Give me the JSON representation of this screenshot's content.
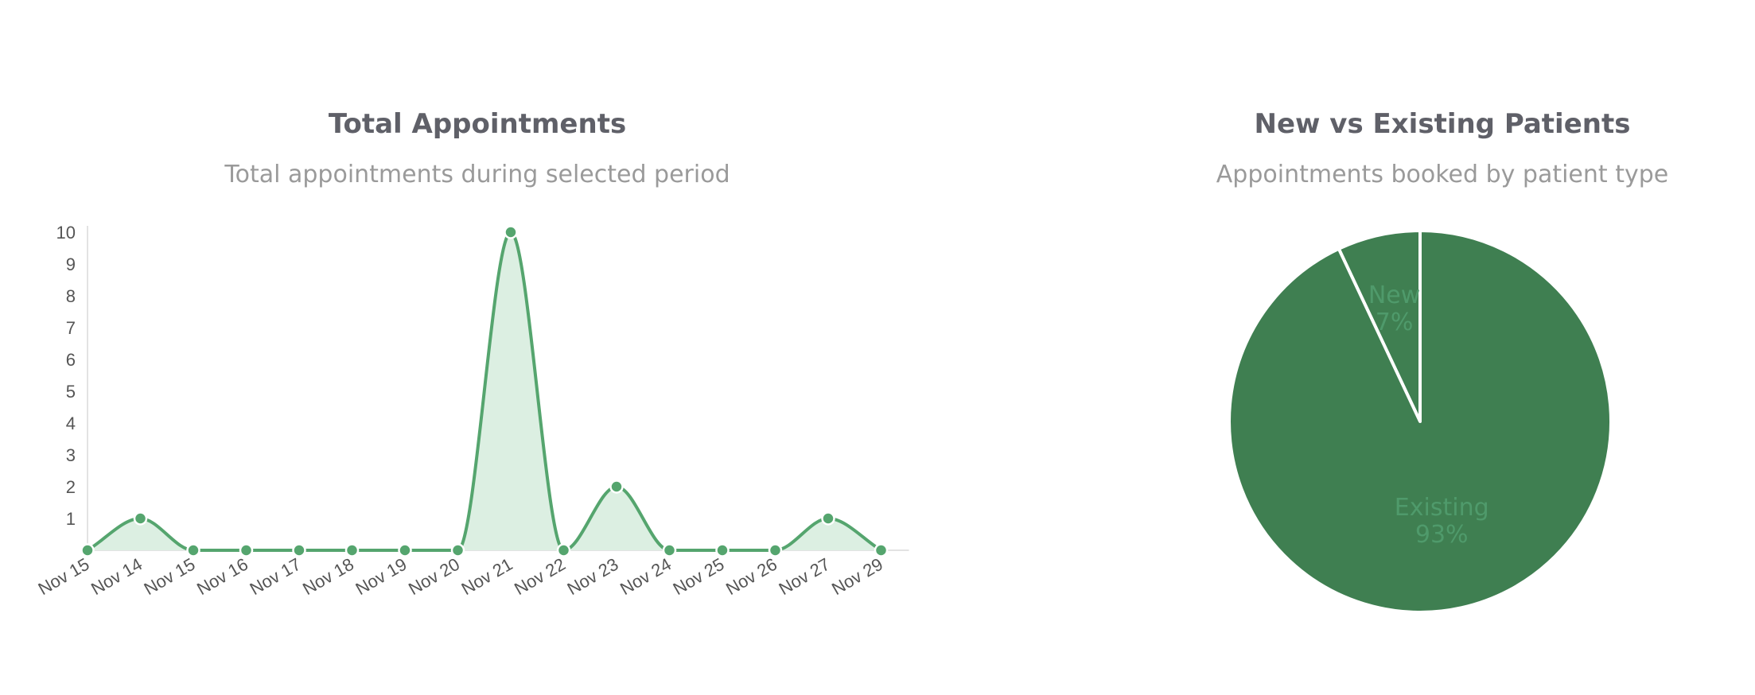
{
  "charts": {
    "appointments": {
      "title": "Total Appointments",
      "subtitle": "Total appointments during selected period"
    },
    "patients": {
      "title": "New vs Existing Patients",
      "subtitle": "Appointments booked by patient type"
    }
  },
  "chart_data": [
    {
      "type": "area",
      "title": "Total Appointments",
      "subtitle": "Total appointments during selected period",
      "categories": [
        "Nov 15",
        "Nov 14",
        "Nov 15",
        "Nov 16",
        "Nov 17",
        "Nov 18",
        "Nov 19",
        "Nov 20",
        "Nov 21",
        "Nov 22",
        "Nov 23",
        "Nov 24",
        "Nov 25",
        "Nov 26",
        "Nov 27",
        "Nov 29"
      ],
      "values": [
        0,
        1,
        0,
        0,
        0,
        0,
        0,
        0,
        10,
        0,
        2,
        0,
        0,
        0,
        1,
        0
      ],
      "yticks": [
        1,
        2,
        3,
        4,
        5,
        6,
        7,
        8,
        9,
        10
      ],
      "ylim": [
        0,
        10
      ],
      "grid": false,
      "color": "#55a56e",
      "fill_color": "#dcefe2"
    },
    {
      "type": "pie",
      "title": "New vs Existing Patients",
      "subtitle": "Appointments booked by patient type",
      "slices": [
        {
          "label": "New",
          "percent_label": "7%",
          "value": 7,
          "color": "#3f7f51"
        },
        {
          "label": "Existing",
          "percent_label": "93%",
          "value": 93,
          "color": "#3f7f51"
        }
      ],
      "slice_border_color": "#ffffff"
    }
  ]
}
